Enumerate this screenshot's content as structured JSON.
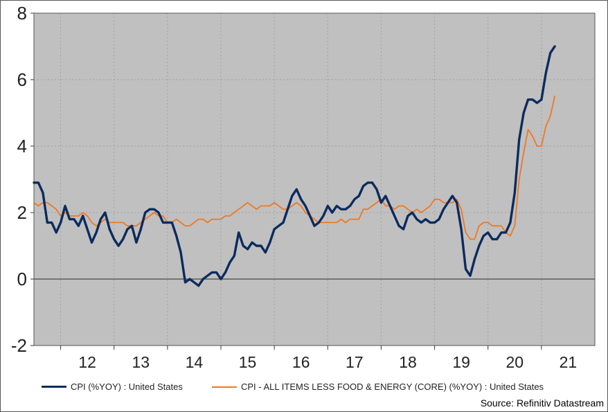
{
  "chart_data": {
    "type": "line",
    "title": "",
    "xlabel": "",
    "ylabel": "",
    "ylim": [
      -2,
      8
    ],
    "yticks": [
      -2,
      0,
      2,
      4,
      6,
      8
    ],
    "xlim": [
      2011.5,
      2022.0
    ],
    "xticks": [
      {
        "label": "12",
        "center": 2012.5
      },
      {
        "label": "13",
        "center": 2013.5
      },
      {
        "label": "14",
        "center": 2014.5
      },
      {
        "label": "15",
        "center": 2015.5
      },
      {
        "label": "16",
        "center": 2016.5
      },
      {
        "label": "17",
        "center": 2017.5
      },
      {
        "label": "18",
        "center": 2018.5
      },
      {
        "label": "19",
        "center": 2019.5
      },
      {
        "label": "20",
        "center": 2020.5
      },
      {
        "label": "21",
        "center": 2021.5
      }
    ],
    "grid": true,
    "legend_position": "bottom",
    "background": "#c0c0c0",
    "series": [
      {
        "name": "CPI (%YOY) : United States",
        "color": "#0b2b5e",
        "points": [
          [
            2011.5,
            2.9
          ],
          [
            2011.583,
            2.9
          ],
          [
            2011.667,
            2.6
          ],
          [
            2011.75,
            1.7
          ],
          [
            2011.833,
            1.7
          ],
          [
            2011.917,
            1.4
          ],
          [
            2012.0,
            1.7
          ],
          [
            2012.083,
            2.2
          ],
          [
            2012.167,
            1.8
          ],
          [
            2012.25,
            1.8
          ],
          [
            2012.333,
            1.6
          ],
          [
            2012.417,
            1.9
          ],
          [
            2012.5,
            1.5
          ],
          [
            2012.583,
            1.1
          ],
          [
            2012.667,
            1.4
          ],
          [
            2012.75,
            1.8
          ],
          [
            2012.833,
            2.0
          ],
          [
            2012.917,
            1.5
          ],
          [
            2013.0,
            1.2
          ],
          [
            2013.083,
            1.0
          ],
          [
            2013.167,
            1.2
          ],
          [
            2013.25,
            1.5
          ],
          [
            2013.333,
            1.6
          ],
          [
            2013.417,
            1.1
          ],
          [
            2013.5,
            1.5
          ],
          [
            2013.583,
            2.0
          ],
          [
            2013.667,
            2.1
          ],
          [
            2013.75,
            2.1
          ],
          [
            2013.833,
            2.0
          ],
          [
            2013.917,
            1.7
          ],
          [
            2014.0,
            1.7
          ],
          [
            2014.083,
            1.7
          ],
          [
            2014.167,
            1.3
          ],
          [
            2014.25,
            0.8
          ],
          [
            2014.333,
            -0.1
          ],
          [
            2014.417,
            0.0
          ],
          [
            2014.5,
            -0.1
          ],
          [
            2014.583,
            -0.2
          ],
          [
            2014.667,
            0.0
          ],
          [
            2014.75,
            0.1
          ],
          [
            2014.833,
            0.2
          ],
          [
            2014.917,
            0.2
          ],
          [
            2015.0,
            0.0
          ],
          [
            2015.083,
            0.2
          ],
          [
            2015.167,
            0.5
          ],
          [
            2015.25,
            0.7
          ],
          [
            2015.333,
            1.4
          ],
          [
            2015.417,
            1.0
          ],
          [
            2015.5,
            0.9
          ],
          [
            2015.583,
            1.1
          ],
          [
            2015.667,
            1.0
          ],
          [
            2015.75,
            1.0
          ],
          [
            2015.833,
            0.8
          ],
          [
            2015.917,
            1.1
          ],
          [
            2016.0,
            1.5
          ],
          [
            2016.083,
            1.6
          ],
          [
            2016.167,
            1.7
          ],
          [
            2016.25,
            2.1
          ],
          [
            2016.333,
            2.5
          ],
          [
            2016.417,
            2.7
          ],
          [
            2016.5,
            2.4
          ],
          [
            2016.583,
            2.2
          ],
          [
            2016.667,
            1.9
          ],
          [
            2016.75,
            1.6
          ],
          [
            2016.833,
            1.7
          ],
          [
            2016.917,
            1.9
          ],
          [
            2017.0,
            2.2
          ],
          [
            2017.083,
            2.0
          ],
          [
            2017.167,
            2.2
          ],
          [
            2017.25,
            2.1
          ],
          [
            2017.333,
            2.1
          ],
          [
            2017.417,
            2.2
          ],
          [
            2017.5,
            2.4
          ],
          [
            2017.583,
            2.5
          ],
          [
            2017.667,
            2.8
          ],
          [
            2017.75,
            2.9
          ],
          [
            2017.833,
            2.9
          ],
          [
            2017.917,
            2.7
          ],
          [
            2018.0,
            2.3
          ],
          [
            2018.083,
            2.5
          ],
          [
            2018.167,
            2.2
          ],
          [
            2018.25,
            1.9
          ],
          [
            2018.333,
            1.6
          ],
          [
            2018.417,
            1.5
          ],
          [
            2018.5,
            1.9
          ],
          [
            2018.583,
            2.0
          ],
          [
            2018.667,
            1.8
          ],
          [
            2018.75,
            1.7
          ],
          [
            2018.833,
            1.8
          ],
          [
            2018.917,
            1.7
          ],
          [
            2019.0,
            1.7
          ],
          [
            2019.083,
            1.8
          ],
          [
            2019.167,
            2.1
          ],
          [
            2019.25,
            2.3
          ],
          [
            2019.333,
            2.5
          ],
          [
            2019.417,
            2.3
          ],
          [
            2019.5,
            1.5
          ],
          [
            2019.583,
            0.3
          ],
          [
            2019.667,
            0.1
          ],
          [
            2019.75,
            0.6
          ],
          [
            2019.833,
            1.0
          ],
          [
            2019.917,
            1.3
          ],
          [
            2020.0,
            1.4
          ],
          [
            2020.083,
            1.2
          ],
          [
            2020.167,
            1.2
          ],
          [
            2020.25,
            1.4
          ],
          [
            2020.333,
            1.4
          ],
          [
            2020.417,
            1.7
          ],
          [
            2020.5,
            2.6
          ],
          [
            2020.583,
            4.2
          ],
          [
            2020.667,
            5.0
          ],
          [
            2020.75,
            5.4
          ],
          [
            2020.833,
            5.4
          ],
          [
            2020.917,
            5.3
          ],
          [
            2021.0,
            5.4
          ],
          [
            2021.083,
            6.2
          ],
          [
            2021.167,
            6.8
          ],
          [
            2021.25,
            7.0
          ]
        ]
      },
      {
        "name": "CPI - ALL ITEMS LESS FOOD & ENERGY (CORE) (%YOY) : United States",
        "color": "#f07820",
        "points": [
          [
            2011.5,
            2.3
          ],
          [
            2011.583,
            2.2
          ],
          [
            2011.667,
            2.3
          ],
          [
            2011.75,
            2.3
          ],
          [
            2011.833,
            2.2
          ],
          [
            2011.917,
            2.1
          ],
          [
            2012.0,
            1.9
          ],
          [
            2012.083,
            2.0
          ],
          [
            2012.167,
            1.9
          ],
          [
            2012.25,
            1.9
          ],
          [
            2012.333,
            1.9
          ],
          [
            2012.417,
            2.0
          ],
          [
            2012.5,
            1.9
          ],
          [
            2012.583,
            1.7
          ],
          [
            2012.667,
            1.6
          ],
          [
            2012.75,
            1.7
          ],
          [
            2012.833,
            1.8
          ],
          [
            2012.917,
            1.7
          ],
          [
            2013.0,
            1.7
          ],
          [
            2013.083,
            1.7
          ],
          [
            2013.167,
            1.7
          ],
          [
            2013.25,
            1.6
          ],
          [
            2013.333,
            1.6
          ],
          [
            2013.417,
            1.6
          ],
          [
            2013.5,
            1.7
          ],
          [
            2013.583,
            1.8
          ],
          [
            2013.667,
            1.9
          ],
          [
            2013.75,
            2.0
          ],
          [
            2013.833,
            1.9
          ],
          [
            2013.917,
            1.9
          ],
          [
            2014.0,
            1.7
          ],
          [
            2014.083,
            1.7
          ],
          [
            2014.167,
            1.8
          ],
          [
            2014.25,
            1.7
          ],
          [
            2014.333,
            1.6
          ],
          [
            2014.417,
            1.6
          ],
          [
            2014.5,
            1.7
          ],
          [
            2014.583,
            1.8
          ],
          [
            2014.667,
            1.8
          ],
          [
            2014.75,
            1.7
          ],
          [
            2014.833,
            1.8
          ],
          [
            2014.917,
            1.8
          ],
          [
            2015.0,
            1.8
          ],
          [
            2015.083,
            1.9
          ],
          [
            2015.167,
            1.9
          ],
          [
            2015.25,
            2.0
          ],
          [
            2015.333,
            2.1
          ],
          [
            2015.417,
            2.2
          ],
          [
            2015.5,
            2.3
          ],
          [
            2015.583,
            2.2
          ],
          [
            2015.667,
            2.1
          ],
          [
            2015.75,
            2.2
          ],
          [
            2015.833,
            2.2
          ],
          [
            2015.917,
            2.2
          ],
          [
            2016.0,
            2.3
          ],
          [
            2016.083,
            2.2
          ],
          [
            2016.167,
            2.1
          ],
          [
            2016.25,
            2.1
          ],
          [
            2016.333,
            2.2
          ],
          [
            2016.417,
            2.3
          ],
          [
            2016.5,
            2.2
          ],
          [
            2016.583,
            2.0
          ],
          [
            2016.667,
            1.9
          ],
          [
            2016.75,
            1.8
          ],
          [
            2016.833,
            1.7
          ],
          [
            2016.917,
            1.7
          ],
          [
            2017.0,
            1.7
          ],
          [
            2017.083,
            1.7
          ],
          [
            2017.167,
            1.7
          ],
          [
            2017.25,
            1.8
          ],
          [
            2017.333,
            1.7
          ],
          [
            2017.417,
            1.8
          ],
          [
            2017.5,
            1.8
          ],
          [
            2017.583,
            1.8
          ],
          [
            2017.667,
            2.1
          ],
          [
            2017.75,
            2.1
          ],
          [
            2017.833,
            2.2
          ],
          [
            2017.917,
            2.3
          ],
          [
            2018.0,
            2.4
          ],
          [
            2018.083,
            2.2
          ],
          [
            2018.167,
            2.2
          ],
          [
            2018.25,
            2.1
          ],
          [
            2018.333,
            2.2
          ],
          [
            2018.417,
            2.2
          ],
          [
            2018.5,
            2.1
          ],
          [
            2018.583,
            2.0
          ],
          [
            2018.667,
            2.1
          ],
          [
            2018.75,
            2.0
          ],
          [
            2018.833,
            2.1
          ],
          [
            2018.917,
            2.2
          ],
          [
            2019.0,
            2.4
          ],
          [
            2019.083,
            2.4
          ],
          [
            2019.167,
            2.3
          ],
          [
            2019.25,
            2.3
          ],
          [
            2019.333,
            2.3
          ],
          [
            2019.417,
            2.4
          ],
          [
            2019.5,
            2.1
          ],
          [
            2019.583,
            1.4
          ],
          [
            2019.667,
            1.2
          ],
          [
            2019.75,
            1.2
          ],
          [
            2019.833,
            1.6
          ],
          [
            2019.917,
            1.7
          ],
          [
            2020.0,
            1.7
          ],
          [
            2020.083,
            1.6
          ],
          [
            2020.167,
            1.6
          ],
          [
            2020.25,
            1.6
          ],
          [
            2020.333,
            1.4
          ],
          [
            2020.417,
            1.3
          ],
          [
            2020.5,
            1.6
          ],
          [
            2020.583,
            3.0
          ],
          [
            2020.667,
            3.8
          ],
          [
            2020.75,
            4.5
          ],
          [
            2020.833,
            4.3
          ],
          [
            2020.917,
            4.0
          ],
          [
            2021.0,
            4.0
          ],
          [
            2021.083,
            4.6
          ],
          [
            2021.167,
            4.9
          ],
          [
            2021.25,
            5.5
          ]
        ]
      }
    ]
  },
  "source": "Source: Refinitiv Datastream"
}
